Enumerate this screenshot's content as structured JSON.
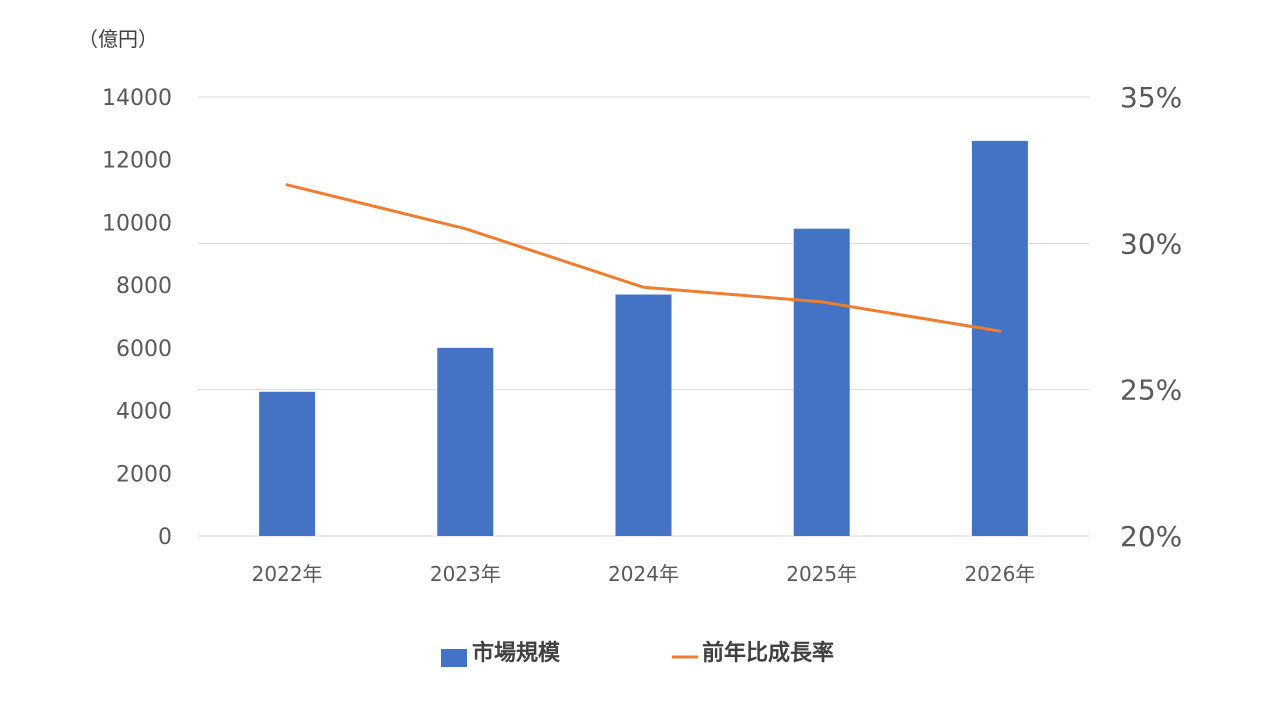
{
  "chart_data": {
    "type": "bar",
    "unit_label": "（億円）",
    "categories": [
      "2022年",
      "2023年",
      "2024年",
      "2025年",
      "2026年"
    ],
    "series": [
      {
        "name": "市場規模",
        "type": "bar",
        "axis": "left",
        "color": "#4472C4",
        "values": [
          4600,
          6000,
          7700,
          9800,
          12600
        ]
      },
      {
        "name": "前年比成長率",
        "type": "line",
        "axis": "right",
        "color": "#ED7D31",
        "values": [
          32.0,
          30.5,
          28.5,
          28.0,
          27.0
        ]
      }
    ],
    "y_left": {
      "ylim": [
        0,
        14000
      ],
      "ticks": [
        "0",
        "2000",
        "4000",
        "6000",
        "8000",
        "10000",
        "12000",
        "14000"
      ],
      "tick_values": [
        0,
        2000,
        4000,
        6000,
        8000,
        10000,
        12000,
        14000
      ]
    },
    "y_right": {
      "ylim": [
        20,
        35
      ],
      "ticks": [
        "20%",
        "25%",
        "30%",
        "35%"
      ],
      "tick_values": [
        20,
        25,
        30,
        35
      ]
    },
    "grid": true,
    "legend_position": "bottom"
  }
}
